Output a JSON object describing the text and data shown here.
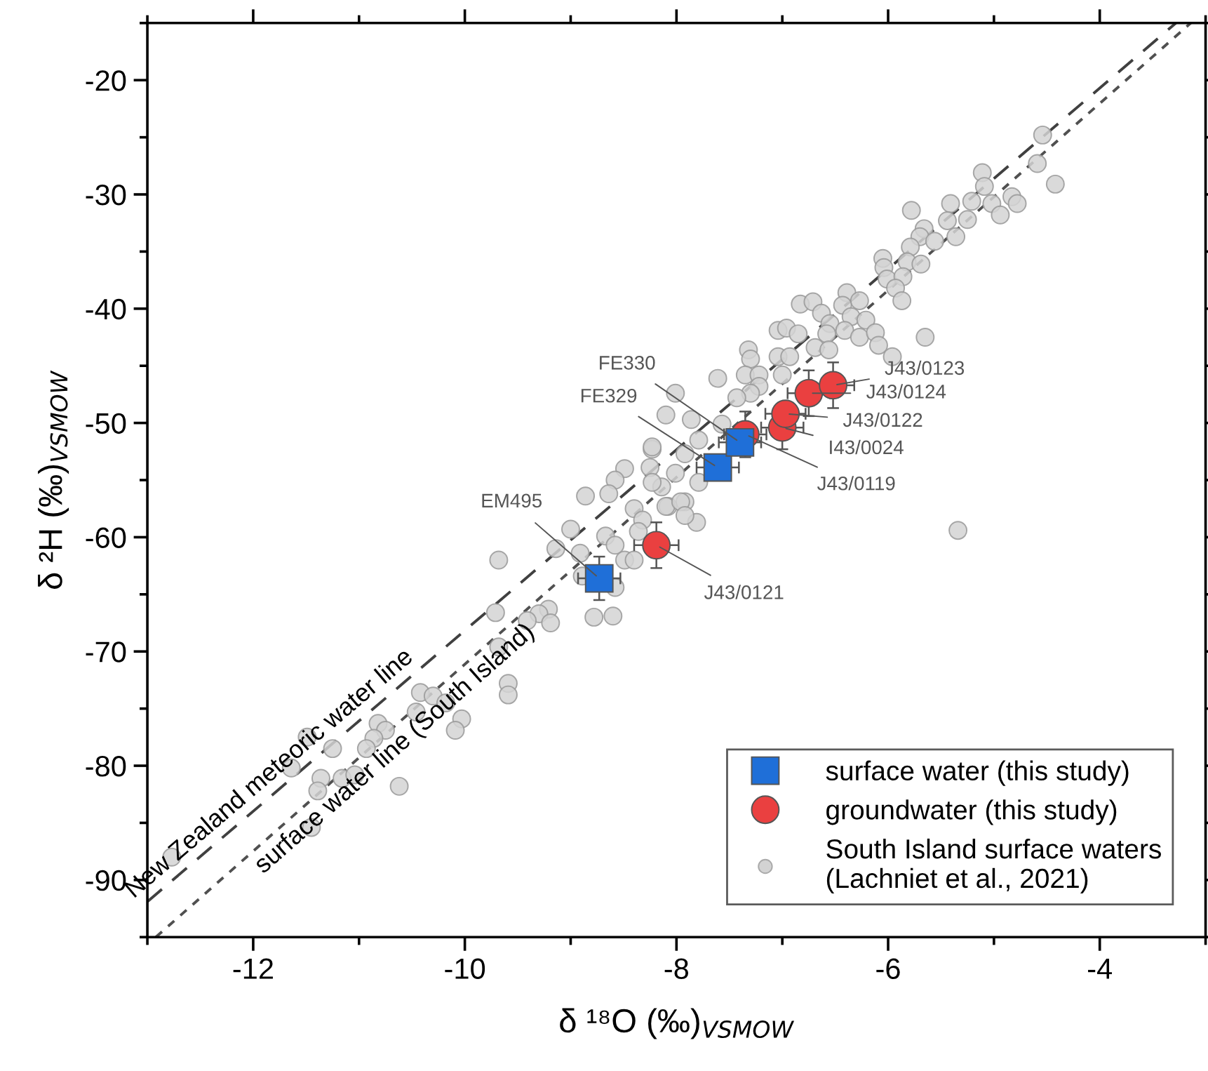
{
  "chart_data": {
    "type": "scatter",
    "xlabel": "δ ¹⁸O (‰)$_{VSMOW}$",
    "ylabel": "δ ²H (‰)$_{VSMOW}$",
    "xlim": [
      -13,
      -3
    ],
    "ylim": [
      -95,
      -15
    ],
    "xticks": [
      -12,
      -10,
      -8,
      -6,
      -4
    ],
    "yticks": [
      -90,
      -80,
      -70,
      -60,
      -50,
      -40,
      -30,
      -20
    ],
    "grid": false,
    "legend": "bottom right",
    "series": [
      {
        "name": "South Island surface waters (Lachniet et al., 2021)",
        "color": "#d3d3d3",
        "marker": "circle",
        "x": [
          -4.54,
          -4.59,
          -4.42,
          -5.11,
          -5.09,
          -5.21,
          -5.02,
          -4.83,
          -4.78,
          -4.94,
          -5.41,
          -5.78,
          -5.44,
          -5.25,
          -5.66,
          -5.7,
          -5.56,
          -5.36,
          -5.79,
          -6.05,
          -6.04,
          -5.82,
          -5.69,
          -6.01,
          -5.86,
          -5.93,
          -5.87,
          -6.39,
          -6.27,
          -6.43,
          -6.83,
          -6.71,
          -6.63,
          -6.35,
          -6.21,
          -6.55,
          -6.41,
          -7.04,
          -6.96,
          -6.85,
          -6.58,
          -6.27,
          -6.12,
          -6.09,
          -5.65,
          -7.32,
          -7.3,
          -7.04,
          -6.93,
          -6.69,
          -6.56,
          -5.96,
          -7.61,
          -7.35,
          -7.22,
          -7.0,
          -7.22,
          -7.3,
          -7.43,
          -8.01,
          -8.1,
          -7.86,
          -7.57,
          -7.79,
          -8.23,
          -7.92,
          -8.25,
          -8.01,
          -7.79,
          -8.14,
          -7.92,
          -8.08,
          -7.81,
          -5.34,
          -8.49,
          -8.23,
          -8.58,
          -8.86,
          -8.64,
          -8.4,
          -8.1,
          -7.96,
          -7.92,
          -8.32,
          -9.0,
          -8.67,
          -8.58,
          -8.36,
          -9.14,
          -8.91,
          -8.49,
          -8.4,
          -9.68,
          -8.89,
          -8.58,
          -8.78,
          -8.6,
          -9.21,
          -9.3,
          -9.41,
          -9.19,
          -9.71,
          -9.68,
          -9.59,
          -9.59,
          -10.42,
          -10.3,
          -10.18,
          -10.46,
          -10.03,
          -10.09,
          -10.82,
          -10.75,
          -10.86,
          -10.93,
          -11.25,
          -11.64,
          -11.36,
          -11.16,
          -11.04,
          -11.39,
          -10.62,
          -11.45,
          -12.77,
          -11.49,
          -8.23
        ],
        "values": [
          -24.8,
          -27.3,
          -29.1,
          -28.1,
          -29.3,
          -30.6,
          -30.8,
          -30.2,
          -30.8,
          -31.8,
          -30.8,
          -31.4,
          -32.3,
          -32.2,
          -33.0,
          -33.7,
          -34.1,
          -33.7,
          -34.6,
          -35.6,
          -36.4,
          -35.9,
          -36.1,
          -37.4,
          -37.2,
          -38.2,
          -39.3,
          -38.6,
          -39.3,
          -39.7,
          -39.6,
          -39.4,
          -40.4,
          -40.7,
          -41.0,
          -41.3,
          -41.9,
          -41.9,
          -41.7,
          -42.2,
          -42.2,
          -42.5,
          -42.1,
          -43.2,
          -42.5,
          -43.6,
          -44.4,
          -44.2,
          -44.2,
          -43.4,
          -43.6,
          -44.2,
          -46.1,
          -45.8,
          -45.8,
          -45.8,
          -46.8,
          -47.4,
          -47.8,
          -47.4,
          -49.3,
          -49.7,
          -50.1,
          -51.5,
          -52.3,
          -52.7,
          -53.9,
          -54.4,
          -55.2,
          -55.6,
          -56.9,
          -57.3,
          -58.7,
          -59.4,
          -54.0,
          -55.2,
          -55.0,
          -56.4,
          -56.2,
          -57.5,
          -57.3,
          -56.9,
          -58.1,
          -58.5,
          -59.3,
          -59.9,
          -60.7,
          -59.5,
          -61.0,
          -61.4,
          -62.0,
          -62.0,
          -62.0,
          -63.4,
          -64.4,
          -67.0,
          -66.9,
          -66.3,
          -66.7,
          -67.3,
          -67.5,
          -66.6,
          -69.6,
          -72.8,
          -73.8,
          -73.6,
          -73.9,
          -74.5,
          -75.3,
          -75.9,
          -76.9,
          -76.3,
          -76.9,
          -77.6,
          -78.5,
          -78.5,
          -80.2,
          -81.1,
          -81.1,
          -80.8,
          -82.2,
          -81.8,
          -85.4,
          -88.0,
          -77.5,
          -52.1
        ]
      },
      {
        "name": "New Zealand meteoric water line",
        "type": "line",
        "color": "#404040",
        "line_style": "dashed",
        "x": [
          -13,
          -3.28
        ],
        "values": [
          -91.9,
          -15
        ]
      },
      {
        "name": "surface water line (South Island)",
        "type": "line",
        "color": "#505050",
        "line_style": "dotted",
        "x": [
          -12.92,
          -3.14
        ],
        "values": [
          -95,
          -15
        ]
      },
      {
        "name": "surface water (this study)",
        "color": "#1f6fd8",
        "marker": "square",
        "x": [
          -8.73,
          -7.61,
          -7.4
        ],
        "values": [
          -63.6,
          -53.9,
          -51.7
        ],
        "errors": [
          1.9,
          null,
          null
        ],
        "xerrors": [
          0.2,
          0.2,
          0.2
        ]
      },
      {
        "name": "groundwater (this study)",
        "color": "#ea4040",
        "marker": "circle",
        "x": [
          -8.19,
          -7.35,
          -7.0,
          -6.97,
          -6.75,
          -6.52
        ],
        "values": [
          -60.7,
          -51.0,
          -50.4,
          -49.2,
          -47.4,
          -46.7
        ],
        "errors": [
          2.0,
          2.0,
          1.9,
          1.0,
          2.0,
          2.0
        ],
        "xerrors": [
          0.21,
          0.2,
          0.2,
          0.19,
          0.2,
          0.2
        ]
      }
    ],
    "annotations": [
      {
        "text": "EM495",
        "x": -8.73,
        "y": -63.6
      },
      {
        "text": "FE329",
        "x": -7.61,
        "y": -53.9
      },
      {
        "text": "FE330",
        "x": -7.4,
        "y": -51.7
      },
      {
        "text": "J43/0121",
        "x": -8.19,
        "y": -60.7
      },
      {
        "text": "J43/0119",
        "x": -7.35,
        "y": -51.0
      },
      {
        "text": "I43/0024",
        "x": -7.0,
        "y": -50.4
      },
      {
        "text": "J43/0122",
        "x": -6.97,
        "y": -49.2
      },
      {
        "text": "J43/0124",
        "x": -6.75,
        "y": -47.4
      },
      {
        "text": "J43/0123",
        "x": -6.52,
        "y": -46.7
      }
    ]
  }
}
